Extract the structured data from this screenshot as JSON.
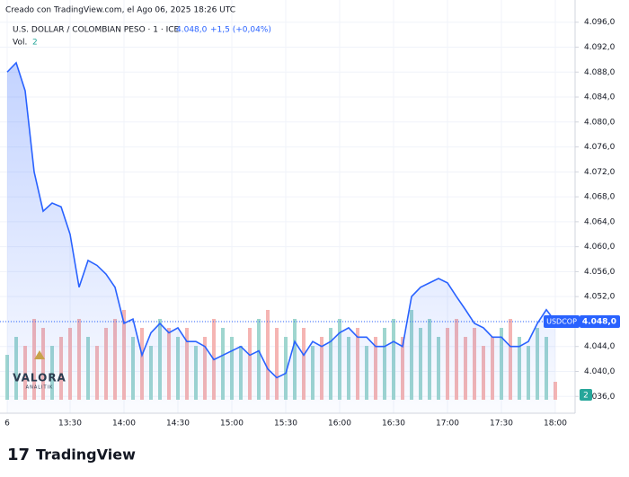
{
  "header": {
    "created": "Creado con TradingView.com, el Ago 06, 2025 18:26 UTC",
    "symbol": "U.S. DOLLAR / COLOMBIAN PESO · 1 · ICE",
    "change": "+1,5 (+0,04%)",
    "volume_label": "Vol."
  },
  "logo": {
    "name": "VALORA",
    "sub": "ANALITIK"
  },
  "footer": {
    "brand": "TradingView"
  },
  "chart_data": {
    "type": "line",
    "categories": [
      "6",
      null,
      null,
      null,
      null,
      null,
      null,
      "13:30",
      null,
      null,
      null,
      null,
      null,
      "14:00",
      null,
      null,
      null,
      null,
      null,
      "14:30",
      null,
      null,
      null,
      null,
      null,
      "15:00",
      null,
      null,
      null,
      null,
      null,
      "15:30",
      null,
      null,
      null,
      null,
      null,
      "16:00",
      null,
      null,
      null,
      null,
      null,
      "16:30",
      null,
      null,
      null,
      null,
      null,
      "17:00",
      null,
      null,
      null,
      null,
      null,
      "17:30",
      null,
      null,
      null,
      null,
      null,
      "18:00"
    ],
    "series": [
      {
        "name": "USDCOP",
        "color": "#2962ff",
        "values": [
          4088,
          4089.5,
          4085,
          4072,
          4065.7,
          4067,
          4066.4,
          4062,
          4053.5,
          4057.8,
          4057,
          4055.6,
          4053.5,
          4047.7,
          4048.4,
          4042.6,
          4046.2,
          4047.7,
          4046.2,
          4047,
          4044.8,
          4044.8,
          4044,
          4041.9,
          4042.6,
          4043.3,
          4044,
          4042.6,
          4043.3,
          4040.4,
          4039,
          4039.7,
          4044.8,
          4042.6,
          4044.8,
          4044,
          4044.8,
          4046.2,
          4047,
          4045.5,
          4045.5,
          4044,
          4044,
          4044.8,
          4044,
          4052,
          4053.5,
          4054.2,
          4054.9,
          4054.2,
          4052,
          4049.9,
          4047.7,
          4047,
          4045.5,
          4045.5,
          4044,
          4044,
          4044.8,
          4047.7,
          4049.9,
          4048
        ]
      }
    ],
    "volume": {
      "up_color": "#9fd6cf",
      "down_color": "#f5b5b3",
      "values": [
        5,
        7,
        6,
        9,
        8,
        6,
        7,
        8,
        9,
        7,
        6,
        8,
        9,
        10,
        7,
        8,
        6,
        9,
        8,
        7,
        8,
        6,
        7,
        9,
        8,
        7,
        6,
        8,
        9,
        10,
        8,
        7,
        9,
        8,
        6,
        7,
        8,
        9,
        7,
        8,
        6,
        7,
        8,
        9,
        7,
        10,
        8,
        9,
        7,
        8,
        9,
        7,
        8,
        6,
        7,
        8,
        9,
        7,
        6,
        8,
        7,
        2
      ]
    },
    "last_price": {
      "value": 4048,
      "label": "4.048,0"
    },
    "ylim": [
      4033.3,
      4097.4
    ],
    "yticks": [
      {
        "value": 4036,
        "label": "4.036,0"
      },
      {
        "value": 4040,
        "label": "4.040,0"
      },
      {
        "value": 4044,
        "label": "4.044,0"
      },
      {
        "value": 4048,
        "label": "4.048,0"
      },
      {
        "value": 4052,
        "label": "4.052,0"
      },
      {
        "value": 4056,
        "label": "4.056,0"
      },
      {
        "value": 4060,
        "label": "4.060,0"
      },
      {
        "value": 4064,
        "label": "4.064,0"
      },
      {
        "value": 4068,
        "label": "4.068,0"
      },
      {
        "value": 4072,
        "label": "4.072,0"
      },
      {
        "value": 4076,
        "label": "4.076,0"
      },
      {
        "value": 4080,
        "label": "4.080,0"
      },
      {
        "value": 4084,
        "label": "4.084,0"
      },
      {
        "value": 4088,
        "label": "4.088,0"
      },
      {
        "value": 4092,
        "label": "4.092,0"
      },
      {
        "value": 4096,
        "label": "4.096,0"
      }
    ],
    "grid": true
  }
}
